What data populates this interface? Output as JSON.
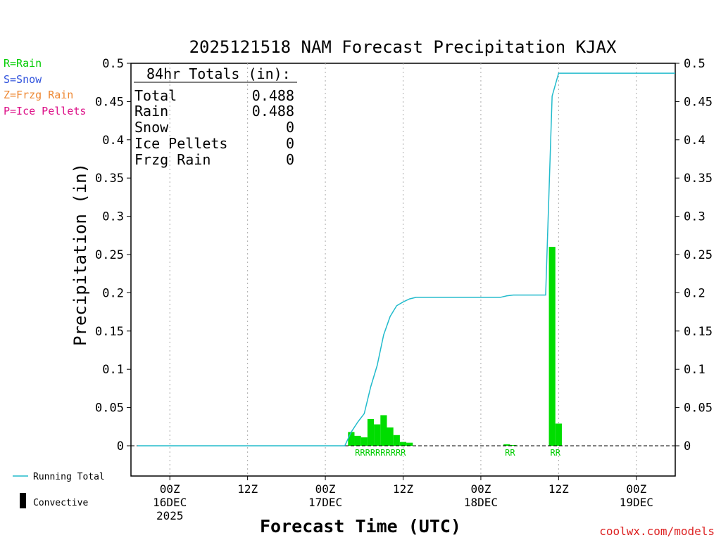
{
  "chart_data": {
    "type": "bar",
    "title": "2025121518 NAM Forecast Precipitation KJAX",
    "xlabel": "Forecast Time (UTC)",
    "ylabel": "Precipitation (in)",
    "ylim": [
      -0.04,
      0.5
    ],
    "y_ticks": [
      "0.5",
      "0.45",
      "0.4",
      "0.35",
      "0.3",
      "0.25",
      "0.2",
      "0.15",
      "0.1",
      "0.05",
      "0"
    ],
    "y_tick_values": [
      0.5,
      0.45,
      0.4,
      0.35,
      0.3,
      0.25,
      0.2,
      0.15,
      0.1,
      0.05,
      0
    ],
    "xlim_hours": [
      -6,
      78
    ],
    "grid": "vertical dotted lines every 12 hours",
    "x_ticks": [
      {
        "hour": 0,
        "line1": "00Z",
        "line2": "16DEC",
        "line3": "2025"
      },
      {
        "hour": 12,
        "line1": "12Z",
        "line2": "",
        "line3": ""
      },
      {
        "hour": 24,
        "line1": "00Z",
        "line2": "17DEC",
        "line3": ""
      },
      {
        "hour": 36,
        "line1": "12Z",
        "line2": "",
        "line3": ""
      },
      {
        "hour": 48,
        "line1": "00Z",
        "line2": "18DEC",
        "line3": ""
      },
      {
        "hour": 60,
        "line1": "12Z",
        "line2": "",
        "line3": ""
      },
      {
        "hour": 72,
        "line1": "00Z",
        "line2": "19DEC",
        "line3": ""
      }
    ],
    "bars": [
      {
        "hour": 28,
        "value": 0.018
      },
      {
        "hour": 29,
        "value": 0.013
      },
      {
        "hour": 30,
        "value": 0.011
      },
      {
        "hour": 31,
        "value": 0.035
      },
      {
        "hour": 32,
        "value": 0.028
      },
      {
        "hour": 33,
        "value": 0.04
      },
      {
        "hour": 34,
        "value": 0.024
      },
      {
        "hour": 35,
        "value": 0.014
      },
      {
        "hour": 36,
        "value": 0.005
      },
      {
        "hour": 37,
        "value": 0.004
      },
      {
        "hour": 52,
        "value": 0.002
      },
      {
        "hour": 53,
        "value": 0.001
      },
      {
        "hour": 59,
        "value": 0.26
      },
      {
        "hour": 60,
        "value": 0.029
      }
    ],
    "running_total": [
      {
        "hour": -5,
        "value": 0
      },
      {
        "hour": 27,
        "value": 0
      },
      {
        "hour": 28,
        "value": 0.018
      },
      {
        "hour": 29,
        "value": 0.031
      },
      {
        "hour": 30,
        "value": 0.042
      },
      {
        "hour": 31,
        "value": 0.077
      },
      {
        "hour": 32,
        "value": 0.105
      },
      {
        "hour": 33,
        "value": 0.145
      },
      {
        "hour": 34,
        "value": 0.169
      },
      {
        "hour": 35,
        "value": 0.183
      },
      {
        "hour": 36,
        "value": 0.188
      },
      {
        "hour": 37,
        "value": 0.192
      },
      {
        "hour": 38,
        "value": 0.194
      },
      {
        "hour": 51,
        "value": 0.194
      },
      {
        "hour": 52,
        "value": 0.196
      },
      {
        "hour": 53,
        "value": 0.197
      },
      {
        "hour": 58,
        "value": 0.197
      },
      {
        "hour": 59,
        "value": 0.457
      },
      {
        "hour": 60,
        "value": 0.487
      },
      {
        "hour": 78,
        "value": 0.487
      }
    ],
    "type_labels": [
      {
        "text": "RRRRRRRRRR",
        "hour_start": 28,
        "hour_end": 37
      },
      {
        "text": "RR",
        "hour_start": 52,
        "hour_end": 53
      },
      {
        "text": "RR",
        "hour_start": 59,
        "hour_end": 60
      }
    ]
  },
  "legend_types": [
    {
      "text": "R=Rain",
      "color": "#00cc00"
    },
    {
      "text": "S=Snow",
      "color": "#3355dd"
    },
    {
      "text": "Z=Frzg Rain",
      "color": "#ee8833"
    },
    {
      "text": "P=Ice Pellets",
      "color": "#dd1188"
    }
  ],
  "legend_lines": {
    "running_total": "Running Total",
    "convective": "Convective"
  },
  "totals": {
    "header": "84hr Totals (in):",
    "rows": [
      {
        "label": "Total",
        "value": "0.488"
      },
      {
        "label": "Rain",
        "value": "0.488"
      },
      {
        "label": "Snow",
        "value": "0"
      },
      {
        "label": "Ice Pellets",
        "value": "0"
      },
      {
        "label": "Frzg Rain",
        "value": "0"
      }
    ]
  },
  "credit": "coolwx.com/models",
  "colors": {
    "bar": "#00dd00",
    "running_total": "#22bbcc",
    "rain_label": "#00cc00",
    "credit": "#dd2222"
  }
}
